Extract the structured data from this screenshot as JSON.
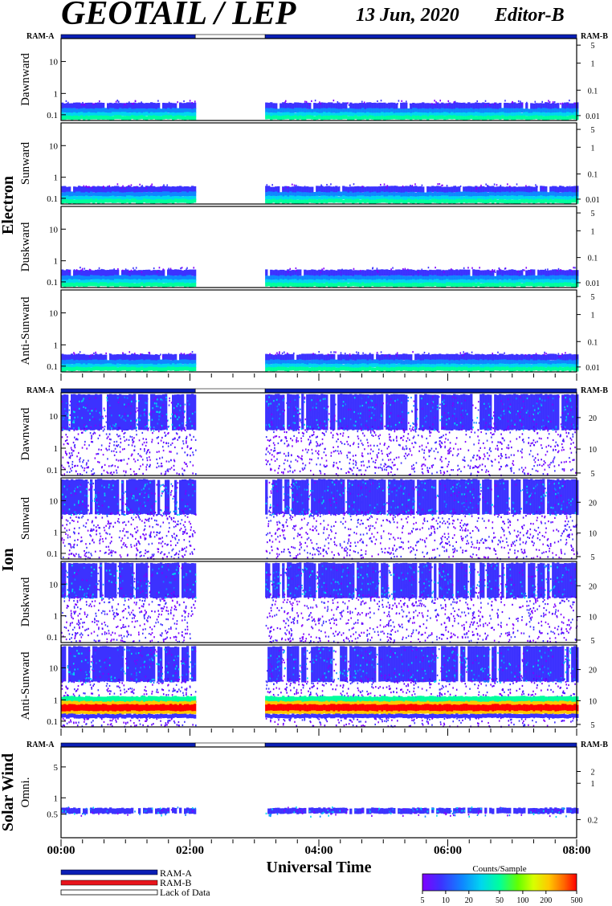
{
  "header": {
    "title": "GEOTAIL / LEP",
    "date": "13 Jun, 2020",
    "editor": "Editor-B"
  },
  "colors": {
    "ram_a": "#0a1fb5",
    "ram_b": "#e8141c",
    "lack": "#ffffff",
    "colorbar": [
      "#7f00ff",
      "#3c32ff",
      "#0f87ff",
      "#00d6f0",
      "#00ff9c",
      "#64ff00",
      "#d8ff00",
      "#ffc800",
      "#ff6400",
      "#ff0000"
    ]
  },
  "chart_data": {
    "type": "heatmap",
    "x": {
      "label": "Universal Time",
      "range": [
        "00:00",
        "08:00"
      ],
      "ticks": [
        "00:00",
        "02:00",
        "04:00",
        "06:00",
        "08:00"
      ]
    },
    "data_gap": {
      "start": "02:05",
      "end": "03:10"
    },
    "mode_bar": {
      "left_label": "RAM-A",
      "right_label": "RAM-B",
      "segments": [
        {
          "mode": "RAM-A",
          "start": "00:00",
          "end": "02:05"
        },
        {
          "mode": "Lack of Data",
          "start": "02:05",
          "end": "03:10"
        },
        {
          "mode": "RAM-A",
          "start": "03:10",
          "end": "08:00"
        }
      ]
    },
    "sections": [
      {
        "name": "Electron",
        "left_ticks": [
          "10",
          "1",
          "0.1"
        ],
        "right_ticks": [
          "5",
          "1",
          "0.1",
          "0.01"
        ],
        "panels": [
          {
            "label": "Dawnward"
          },
          {
            "label": "Sunward"
          },
          {
            "label": "Duskward"
          },
          {
            "label": "Anti-Sunward"
          }
        ]
      },
      {
        "name": "Ion",
        "left_ticks": [
          "10",
          "1",
          "0.1"
        ],
        "right_ticks": [
          "20",
          "10",
          "5"
        ],
        "panels": [
          {
            "label": "Dawnward"
          },
          {
            "label": "Sunward"
          },
          {
            "label": "Duskward"
          },
          {
            "label": "Anti-Sunward"
          }
        ]
      },
      {
        "name": "Solar Wind",
        "left_ticks": [
          "5",
          "1",
          "0.5"
        ],
        "right_ticks": [
          "2",
          "1",
          "0.2"
        ],
        "panels": [
          {
            "label": "Omni."
          }
        ]
      }
    ],
    "legend": [
      {
        "label": "RAM-A",
        "color": "#0a1fb5"
      },
      {
        "label": "RAM-B",
        "color": "#e8141c"
      },
      {
        "label": "Lack of Data",
        "color": "#ffffff"
      }
    ],
    "colorbar": {
      "title": "Counts/Sample",
      "ticks": [
        "5",
        "10",
        "20",
        "50",
        "100",
        "200",
        "500"
      ]
    }
  }
}
